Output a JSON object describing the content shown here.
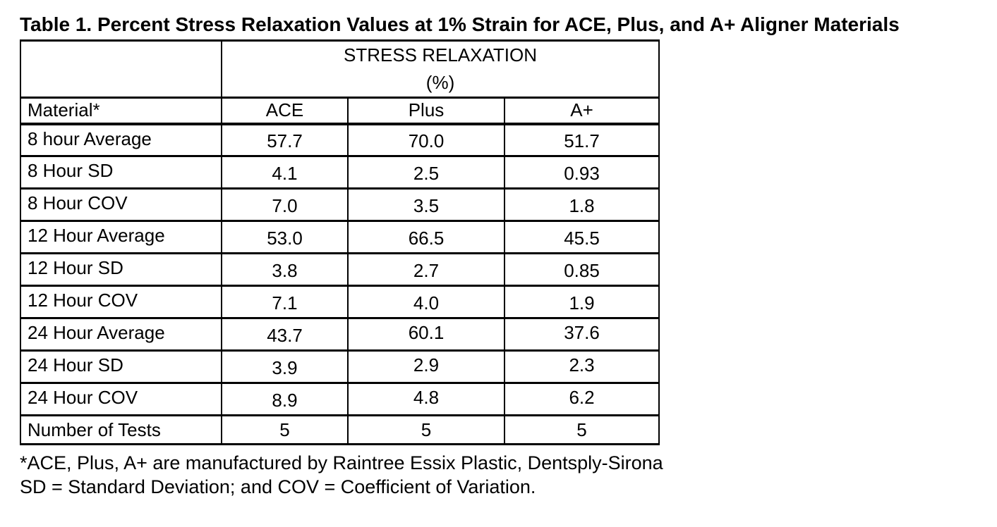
{
  "title": "Table 1. Percent Stress Relaxation Values at 1% Strain for ACE, Plus, and A+ Aligner Materials",
  "table": {
    "group_header": "STRESS RELAXATION",
    "group_unit": "(%)",
    "columns": [
      "Material*",
      "ACE",
      "Plus",
      "A+"
    ],
    "rows": [
      {
        "label": "8 hour Average",
        "values": [
          "57.7",
          "70.0",
          "51.7"
        ]
      },
      {
        "label": "8 Hour SD",
        "values": [
          "4.1",
          "2.5",
          "0.93"
        ]
      },
      {
        "label": "8 Hour COV",
        "values": [
          "7.0",
          "3.5",
          "1.8"
        ]
      },
      {
        "label": "12 Hour Average",
        "values": [
          "53.0",
          "66.5",
          "45.5"
        ]
      },
      {
        "label": "12 Hour SD",
        "values": [
          "3.8",
          "2.7",
          "0.85"
        ]
      },
      {
        "label": "12 Hour COV",
        "values": [
          "7.1",
          "4.0",
          "1.9"
        ]
      },
      {
        "label": "24 Hour Average",
        "values": [
          "43.7",
          "60.1",
          "37.6"
        ]
      },
      {
        "label": "24 Hour SD",
        "values": [
          "3.9",
          "2.9",
          "2.3"
        ]
      },
      {
        "label": "24 Hour COV",
        "values": [
          "8.9",
          "4.8",
          "6.2"
        ]
      },
      {
        "label": "Number of Tests",
        "values": [
          "5",
          "5",
          "5"
        ]
      }
    ]
  },
  "footnotes": [
    "*ACE, Plus, A+ are manufactured by Raintree Essix Plastic, Dentsply-Sirona",
    "SD = Standard Deviation; and COV = Coefficient of Variation."
  ],
  "colors": {
    "text": "#000000",
    "background": "#ffffff",
    "border": "#000000"
  }
}
